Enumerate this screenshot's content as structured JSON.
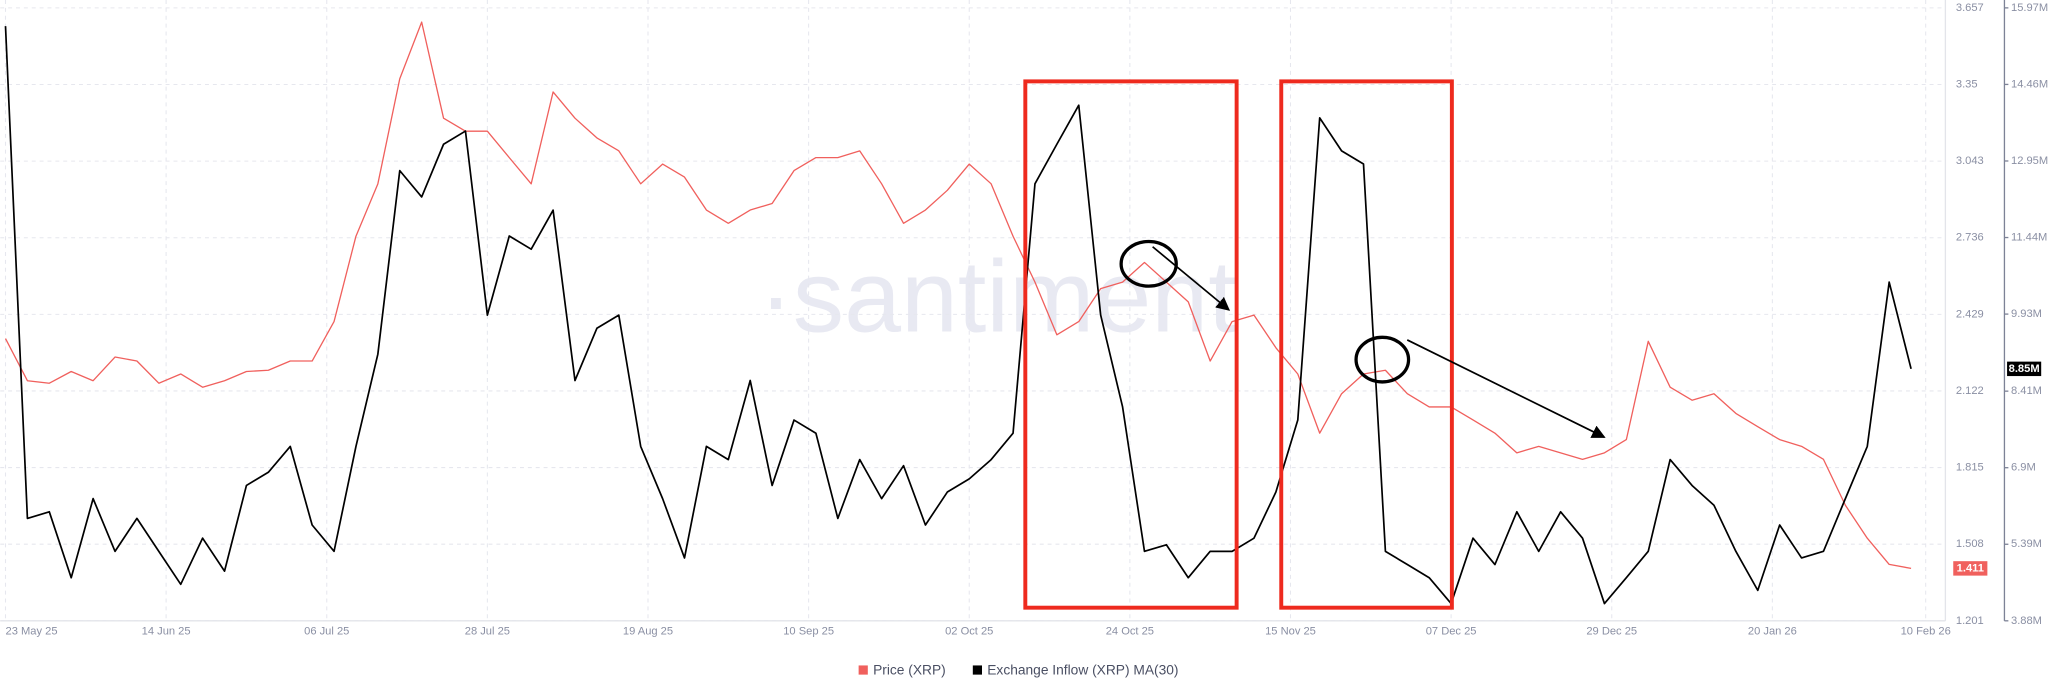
{
  "chart_data": {
    "type": "line",
    "watermark": "·santiment",
    "grid": true,
    "x": [
      "2025-05-23",
      "2025-05-26",
      "2025-05-29",
      "2025-06-01",
      "2025-06-04",
      "2025-06-07",
      "2025-06-10",
      "2025-06-13",
      "2025-06-16",
      "2025-06-19",
      "2025-06-22",
      "2025-06-25",
      "2025-06-28",
      "2025-07-01",
      "2025-07-04",
      "2025-07-07",
      "2025-07-10",
      "2025-07-13",
      "2025-07-16",
      "2025-07-19",
      "2025-07-22",
      "2025-07-25",
      "2025-07-28",
      "2025-07-31",
      "2025-08-03",
      "2025-08-06",
      "2025-08-09",
      "2025-08-12",
      "2025-08-15",
      "2025-08-18",
      "2025-08-21",
      "2025-08-24",
      "2025-08-27",
      "2025-08-30",
      "2025-09-02",
      "2025-09-05",
      "2025-09-08",
      "2025-09-11",
      "2025-09-14",
      "2025-09-17",
      "2025-09-20",
      "2025-09-23",
      "2025-09-26",
      "2025-09-29",
      "2025-10-02",
      "2025-10-05",
      "2025-10-08",
      "2025-10-11",
      "2025-10-14",
      "2025-10-17",
      "2025-10-20",
      "2025-10-23",
      "2025-10-26",
      "2025-10-29",
      "2025-11-01",
      "2025-11-04",
      "2025-11-07",
      "2025-11-10",
      "2025-11-13",
      "2025-11-16",
      "2025-11-19",
      "2025-11-22",
      "2025-11-25",
      "2025-11-28",
      "2025-12-01",
      "2025-12-04",
      "2025-12-07",
      "2025-12-10",
      "2025-12-13",
      "2025-12-16",
      "2025-12-19",
      "2025-12-22",
      "2025-12-25",
      "2025-12-28",
      "2025-12-31",
      "2026-01-03",
      "2026-01-06",
      "2026-01-09",
      "2026-01-12",
      "2026-01-15",
      "2026-01-18",
      "2026-01-21",
      "2026-01-24",
      "2026-01-27",
      "2026-01-30",
      "2026-02-02",
      "2026-02-05",
      "2026-02-08"
    ],
    "series": [
      {
        "name": "Price (XRP)",
        "color": "#f0605d",
        "last_value_label": "1.411",
        "values": [
          2.332,
          2.163,
          2.153,
          2.2,
          2.163,
          2.258,
          2.242,
          2.153,
          2.19,
          2.137,
          2.163,
          2.2,
          2.205,
          2.242,
          2.242,
          2.4,
          2.742,
          2.952,
          3.373,
          3.6,
          3.215,
          3.163,
          3.163,
          3.057,
          2.952,
          3.32,
          3.215,
          3.136,
          3.084,
          2.952,
          3.031,
          2.979,
          2.847,
          2.794,
          2.847,
          2.873,
          3.005,
          3.057,
          3.057,
          3.084,
          2.952,
          2.794,
          2.847,
          2.926,
          3.031,
          2.952,
          2.742,
          2.558,
          2.347,
          2.4,
          2.532,
          2.558,
          2.637,
          2.558,
          2.479,
          2.242,
          2.4,
          2.426,
          2.295,
          2.19,
          1.953,
          2.111,
          2.19,
          2.205,
          2.111,
          2.058,
          2.058,
          2.006,
          1.953,
          1.874,
          1.9,
          1.874,
          1.848,
          1.874,
          1.927,
          2.321,
          2.137,
          2.085,
          2.111,
          2.032,
          1.979,
          1.927,
          1.9,
          1.848,
          1.664,
          1.532,
          1.427,
          1.411
        ]
      },
      {
        "name": "Exchange Inflow (XRP) MA(30)",
        "color": "#000000",
        "axis": "y2",
        "last_value_label": "8.85M",
        "values": [
          15610000,
          5900000,
          6030000,
          4730000,
          6290000,
          5250000,
          5900000,
          5250000,
          4600000,
          5510000,
          4860000,
          6550000,
          6810000,
          7320000,
          5770000,
          5250000,
          7320000,
          9140000,
          12760000,
          12240000,
          13280000,
          13540000,
          9910000,
          11470000,
          11210000,
          11980000,
          8620000,
          9650000,
          9910000,
          7320000,
          6290000,
          5120000,
          7320000,
          7060000,
          8620000,
          6550000,
          7840000,
          7580000,
          5900000,
          7060000,
          6290000,
          6940000,
          5770000,
          6420000,
          6680000,
          7060000,
          7580000,
          12500000,
          13280000,
          14050000,
          9910000,
          8100000,
          5250000,
          5380000,
          4730000,
          5250000,
          5250000,
          5510000,
          6420000,
          7840000,
          13800000,
          13150000,
          12890000,
          5250000,
          4990000,
          4730000,
          4220000,
          5510000,
          4990000,
          6030000,
          5250000,
          6030000,
          5510000,
          4220000,
          4730000,
          5250000,
          7060000,
          6550000,
          6160000,
          5250000,
          4480000,
          5770000,
          5120000,
          5250000,
          6290000,
          7320000,
          10560000,
          8850000
        ]
      }
    ],
    "xlim": [
      "2025-05-23",
      "2026-02-10"
    ],
    "xticks": [
      {
        "value": "2025-05-23",
        "label": "23 May 25"
      },
      {
        "value": "2025-06-14",
        "label": "14 Jun 25"
      },
      {
        "value": "2025-07-06",
        "label": "06 Jul 25"
      },
      {
        "value": "2025-07-28",
        "label": "28 Jul 25"
      },
      {
        "value": "2025-08-19",
        "label": "19 Aug 25"
      },
      {
        "value": "2025-09-10",
        "label": "10 Sep 25"
      },
      {
        "value": "2025-10-02",
        "label": "02 Oct 25"
      },
      {
        "value": "2025-10-24",
        "label": "24 Oct 25"
      },
      {
        "value": "2025-11-15",
        "label": "15 Nov 25"
      },
      {
        "value": "2025-12-07",
        "label": "07 Dec 25"
      },
      {
        "value": "2025-12-29",
        "label": "29 Dec 25"
      },
      {
        "value": "2026-01-20",
        "label": "20 Jan 26"
      },
      {
        "value": "2026-02-10",
        "label": "10 Feb 26"
      }
    ],
    "ylim": [
      1.201,
      3.657
    ],
    "yticks": [
      1.201,
      1.508,
      1.815,
      2.122,
      2.429,
      2.736,
      3.043,
      3.35,
      3.657
    ],
    "y2lim": [
      3880000,
      15970000
    ],
    "y2ticks": [
      {
        "value": 3880000,
        "label": "3.88M"
      },
      {
        "value": 5390000,
        "label": "5.39M"
      },
      {
        "value": 6900000,
        "label": "6.9M"
      },
      {
        "value": 8410000,
        "label": "8.41M"
      },
      {
        "value": 9930000,
        "label": "9.93M"
      },
      {
        "value": 11440000,
        "label": "11.44M"
      },
      {
        "value": 12950000,
        "label": "12.95M"
      },
      {
        "value": 14460000,
        "label": "14.46M"
      },
      {
        "value": 15970000,
        "label": "15.97M"
      }
    ]
  }
}
